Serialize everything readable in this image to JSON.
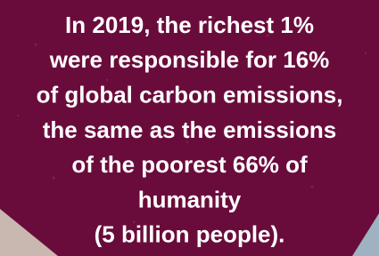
{
  "statement": {
    "lines": [
      "In 2019, the richest 1%",
      "were responsible for 16%",
      "of global carbon emissions,",
      "the same as the emissions",
      "of the poorest 66% of",
      "humanity",
      "(5 billion people)."
    ]
  }
}
